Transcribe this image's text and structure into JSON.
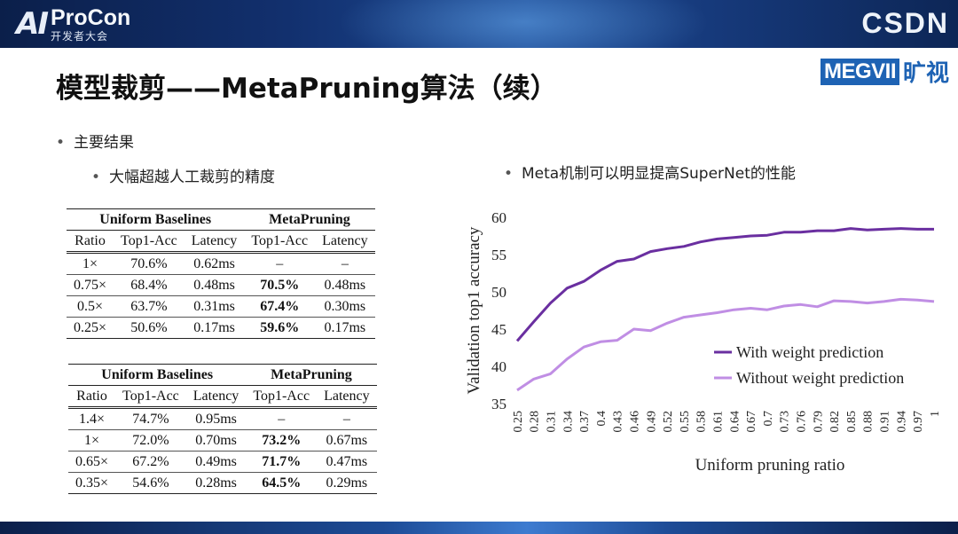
{
  "header": {
    "logo_left_ai": "AI",
    "logo_left_name": "ProCon",
    "logo_left_sub": "开发者大会",
    "logo_right": "CSDN"
  },
  "title": "模型裁剪——MetaPruning算法（续）",
  "brand": {
    "box": "MEGVII",
    "cn": "旷视"
  },
  "bullets": {
    "main": "主要结果",
    "sub_left": "大幅超越人工裁剪的精度",
    "sub_right": "Meta机制可以明显提高SuperNet的性能"
  },
  "tables": [
    {
      "group_left": "Uniform Baselines",
      "group_right": "MetaPruning",
      "headers": [
        "Ratio",
        "Top1-Acc",
        "Latency",
        "Top1-Acc",
        "Latency"
      ],
      "rows": [
        [
          "1×",
          "70.6%",
          "0.62ms",
          "–",
          "–"
        ],
        [
          "0.75×",
          "68.4%",
          "0.48ms",
          "70.5%",
          "0.48ms"
        ],
        [
          "0.5×",
          "63.7%",
          "0.31ms",
          "67.4%",
          "0.30ms"
        ],
        [
          "0.25×",
          "50.6%",
          "0.17ms",
          "59.6%",
          "0.17ms"
        ]
      ]
    },
    {
      "group_left": "Uniform Baselines",
      "group_right": "MetaPruning",
      "headers": [
        "Ratio",
        "Top1-Acc",
        "Latency",
        "Top1-Acc",
        "Latency"
      ],
      "rows": [
        [
          "1.4×",
          "74.7%",
          "0.95ms",
          "–",
          "–"
        ],
        [
          "1×",
          "72.0%",
          "0.70ms",
          "73.2%",
          "0.67ms"
        ],
        [
          "0.65×",
          "67.2%",
          "0.49ms",
          "71.7%",
          "0.47ms"
        ],
        [
          "0.35×",
          "54.6%",
          "0.28ms",
          "64.5%",
          "0.29ms"
        ]
      ]
    }
  ],
  "chart_data": {
    "type": "line",
    "title": "",
    "xlabel": "Uniform pruning ratio",
    "ylabel": "Validation top1 accuracy",
    "ylim": [
      35,
      60
    ],
    "yticks": [
      35,
      40,
      45,
      50,
      55,
      60
    ],
    "categories": [
      "0.25",
      "0.28",
      "0.31",
      "0.34",
      "0.37",
      "0.4",
      "0.43",
      "0.46",
      "0.49",
      "0.52",
      "0.55",
      "0.58",
      "0.61",
      "0.64",
      "0.67",
      "0.7",
      "0.73",
      "0.76",
      "0.79",
      "0.82",
      "0.85",
      "0.88",
      "0.91",
      "0.94",
      "0.97",
      "1"
    ],
    "legend_position": "bottom-right",
    "series": [
      {
        "name": "With weight prediction",
        "color": "#6a2fa0",
        "values": [
          43.4,
          46.0,
          48.5,
          50.5,
          51.4,
          52.9,
          54.1,
          54.4,
          55.4,
          55.8,
          56.1,
          56.7,
          57.1,
          57.3,
          57.5,
          57.6,
          58.0,
          58.0,
          58.2,
          58.2,
          58.5,
          58.3,
          58.4,
          58.5,
          58.4,
          58.4
        ]
      },
      {
        "name": "Without weight prediction",
        "color": "#c08ee4",
        "values": [
          36.8,
          38.3,
          39.0,
          41.0,
          42.6,
          43.3,
          43.5,
          45.0,
          44.8,
          45.8,
          46.6,
          46.9,
          47.2,
          47.6,
          47.8,
          47.6,
          48.1,
          48.3,
          48.0,
          48.8,
          48.7,
          48.5,
          48.7,
          49.0,
          48.9,
          48.7
        ]
      }
    ]
  }
}
